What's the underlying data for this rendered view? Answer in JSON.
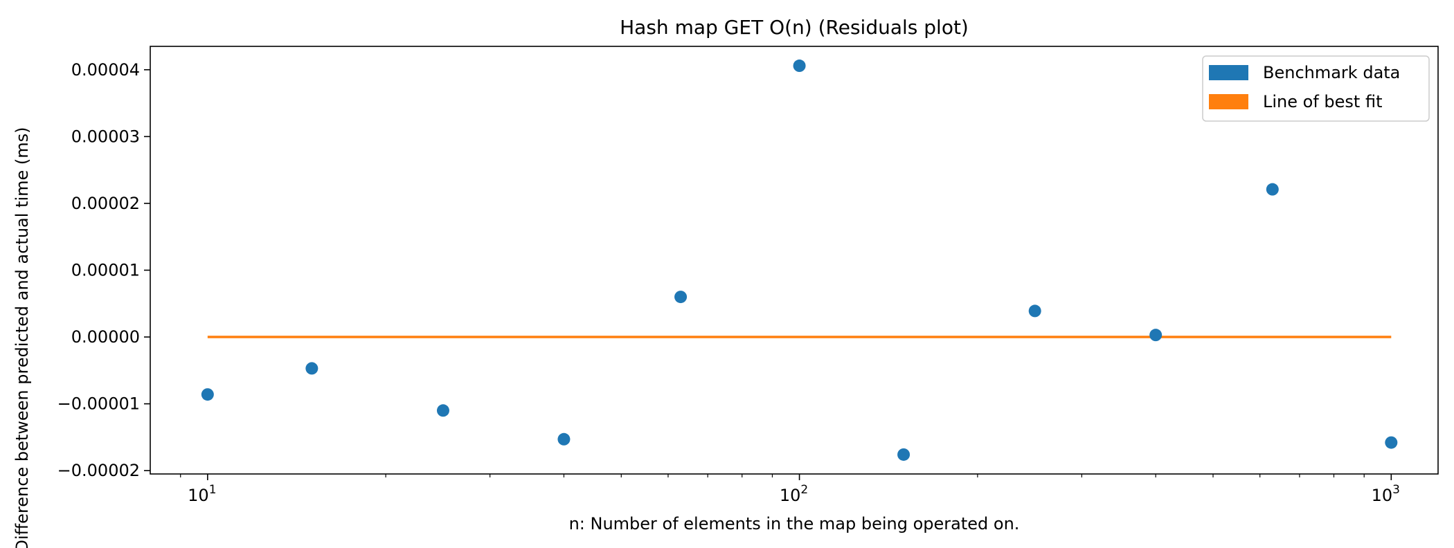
{
  "chart_data": {
    "type": "scatter",
    "title": "Hash map GET O(n)  (Residuals plot)",
    "xlabel": "n: Number of elements in the map being operated on.",
    "ylabel": "Difference between predicted and actual time (ms)",
    "x_scale": "log",
    "xlim": [
      8,
      1200
    ],
    "ylim": [
      -2.05e-05,
      4.35e-05
    ],
    "grid": false,
    "legend_position": "top-right",
    "x_ticks": [
      {
        "value": 10,
        "base": "10",
        "exp": "1"
      },
      {
        "value": 100,
        "base": "10",
        "exp": "2"
      },
      {
        "value": 1000,
        "base": "10",
        "exp": "3"
      }
    ],
    "y_ticks": [
      {
        "value": 4e-05,
        "label": "0.00004"
      },
      {
        "value": 3e-05,
        "label": "0.00003"
      },
      {
        "value": 2e-05,
        "label": "0.00002"
      },
      {
        "value": 1e-05,
        "label": "0.00001"
      },
      {
        "value": 0.0,
        "label": "0.00000"
      },
      {
        "value": -1e-05,
        "label": "−0.00001"
      },
      {
        "value": -2e-05,
        "label": "−0.00002"
      }
    ],
    "series": [
      {
        "name": "Benchmark data",
        "kind": "scatter",
        "color": "#1f77b4",
        "x": [
          10,
          15,
          25,
          40,
          63,
          100,
          150,
          250,
          400,
          630,
          1000
        ],
        "y": [
          -8.6e-06,
          -4.7e-06,
          -1.1e-05,
          -1.53e-05,
          6e-06,
          4.06e-05,
          -1.76e-05,
          3.9e-06,
          3e-07,
          2.21e-05,
          -1.58e-05
        ]
      },
      {
        "name": "Line of best fit",
        "kind": "line",
        "color": "#ff7f0e",
        "x": [
          10,
          1000
        ],
        "y": [
          0.0,
          0.0
        ]
      }
    ]
  }
}
